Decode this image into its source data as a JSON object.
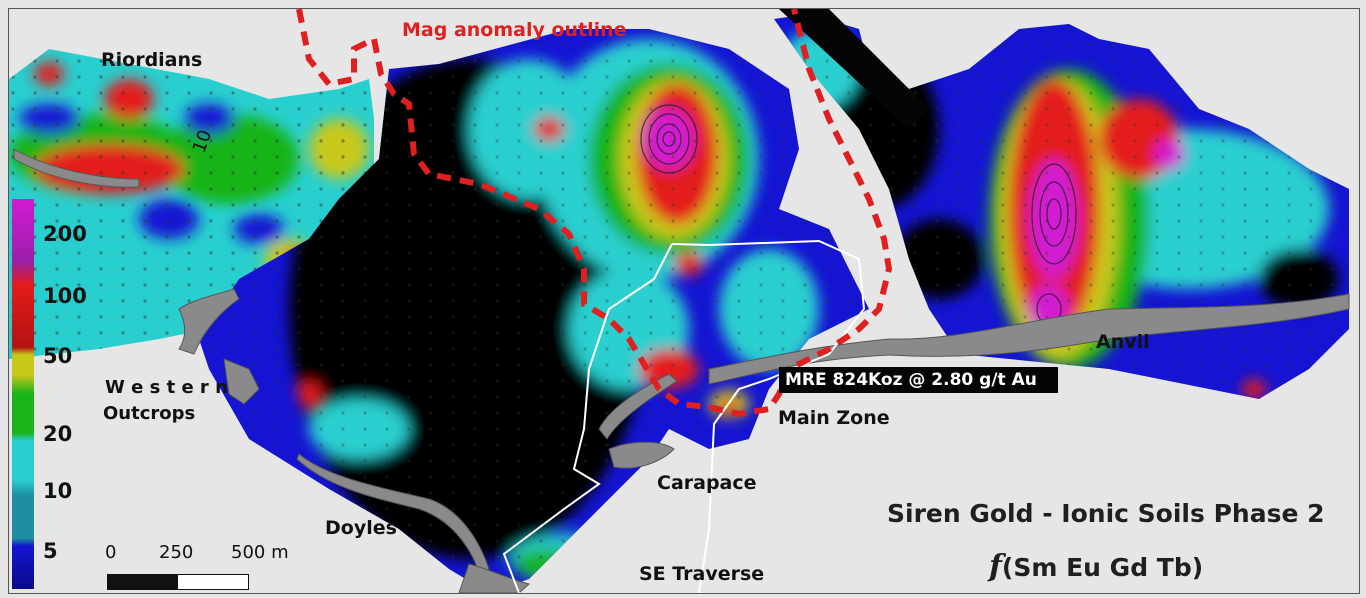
{
  "map": {
    "title": "Siren Gold - Ionic Soils Phase 2",
    "subtitle_prefix": "f",
    "subtitle": "(Sm Eu Gd Tb)",
    "anomaly_label": "Mag anomaly outline",
    "resource_label": "MRE 824Koz @ 2.80 g/t Au",
    "contour_label": "10",
    "place_labels": {
      "riordians": "Riordians",
      "western": "W e s t e r n",
      "outcrops": "Outcrops",
      "doyles": "Doyles",
      "carapace": "Carapace",
      "se_traverse": "SE Traverse",
      "main_zone": "Main Zone",
      "anvil": "Anvil"
    }
  },
  "legend": {
    "values": [
      "200",
      "100",
      "50",
      "20",
      "10",
      "5"
    ],
    "colors": [
      "#d21ad2",
      "#9b1fa8",
      "#e31b1b",
      "#c8c81a",
      "#19b419",
      "#29cfcf",
      "#1e8fa0",
      "#1414d2",
      "#0a0a8a"
    ]
  },
  "scale": {
    "ticks": [
      "0",
      "250",
      "500 m"
    ]
  },
  "colors": {
    "anomaly_outline": "#e02020",
    "background": "#e6e6e6"
  }
}
